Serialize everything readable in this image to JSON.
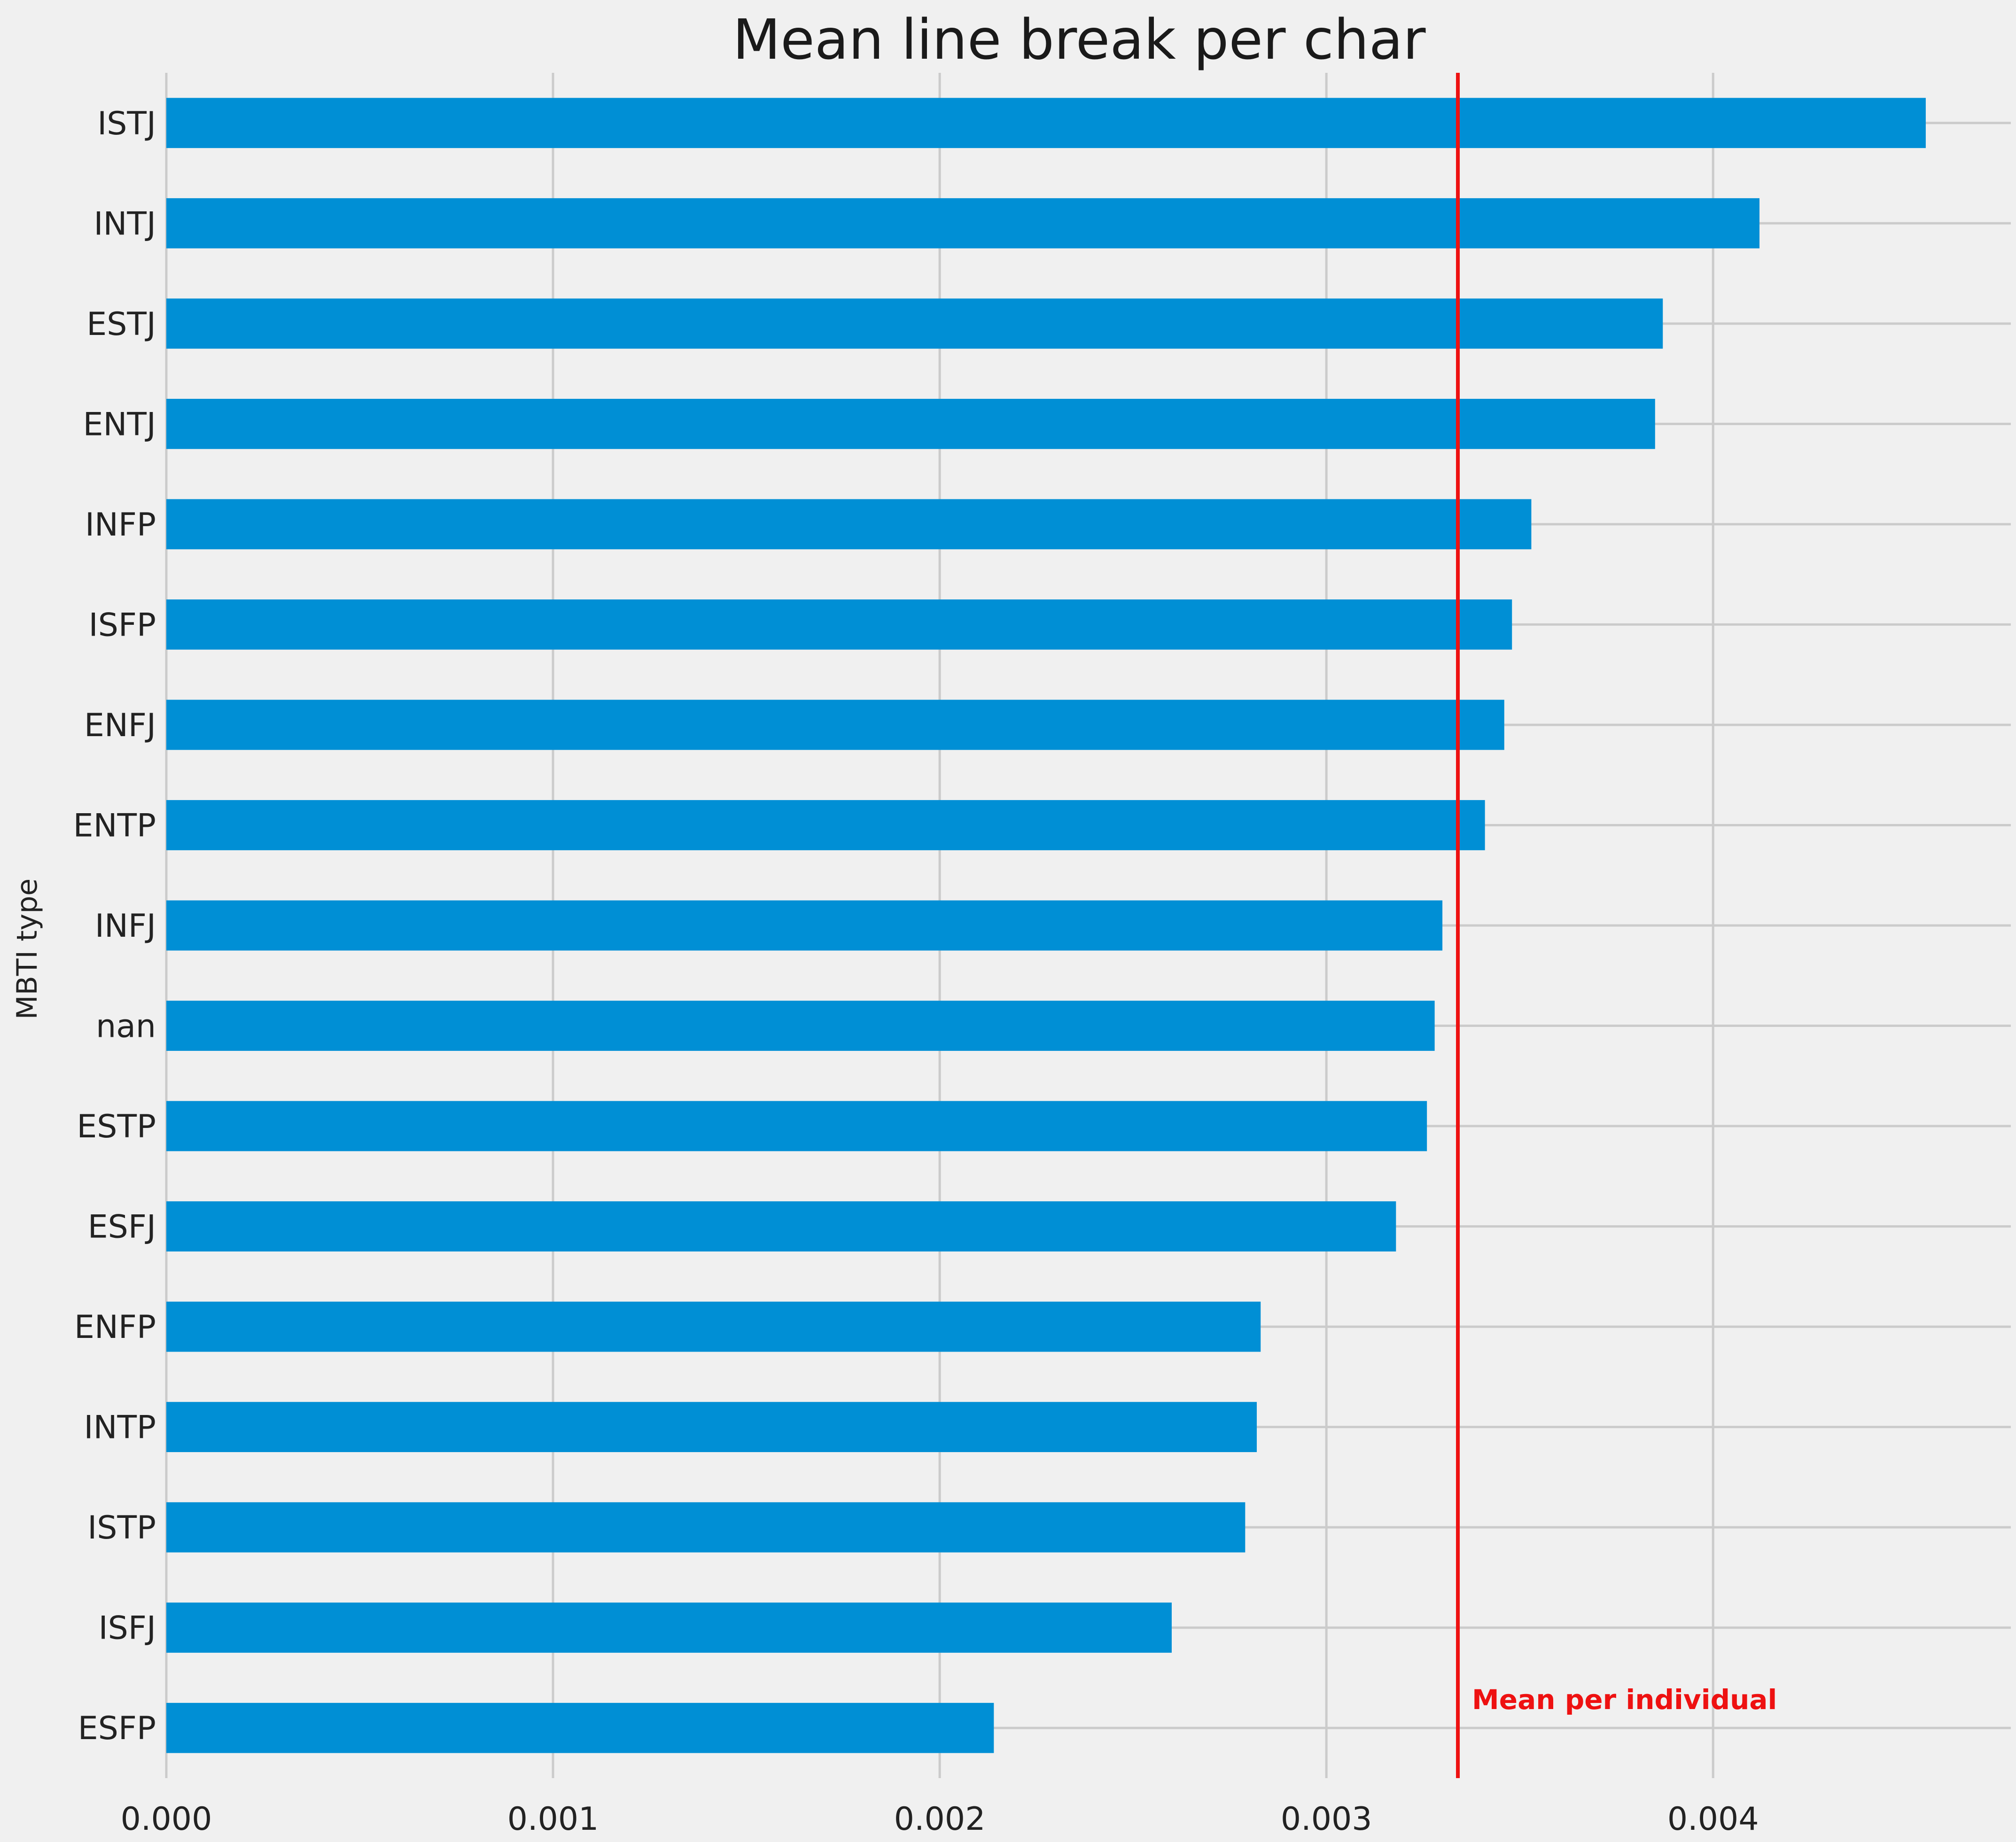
{
  "chart_data": {
    "type": "bar",
    "orientation": "horizontal",
    "title": "Mean line break per char",
    "xlabel": "",
    "ylabel": "MBTI type",
    "categories": [
      "ISTJ",
      "INTJ",
      "ESTJ",
      "ENTJ",
      "INFP",
      "ISFP",
      "ENFJ",
      "ENTP",
      "INFJ",
      "nan",
      "ESTP",
      "ESFJ",
      "ENFP",
      "INTP",
      "ISTP",
      "ISFJ",
      "ESFP"
    ],
    "values": [
      0.00455,
      0.00412,
      0.00387,
      0.00385,
      0.00353,
      0.00348,
      0.00346,
      0.00341,
      0.0033,
      0.00328,
      0.00326,
      0.00318,
      0.00283,
      0.00282,
      0.00279,
      0.0026,
      0.00214
    ],
    "xlim": [
      0,
      0.00477
    ],
    "xticks": [
      0.0,
      0.001,
      0.002,
      0.003,
      0.004
    ],
    "xtick_labels": [
      "0.000",
      "0.001",
      "0.002",
      "0.003",
      "0.004"
    ],
    "grid": true,
    "bar_color": "#008fd5",
    "reference_line": {
      "value": 0.00334,
      "label": "Mean per individual",
      "color": "#ee1111"
    }
  }
}
